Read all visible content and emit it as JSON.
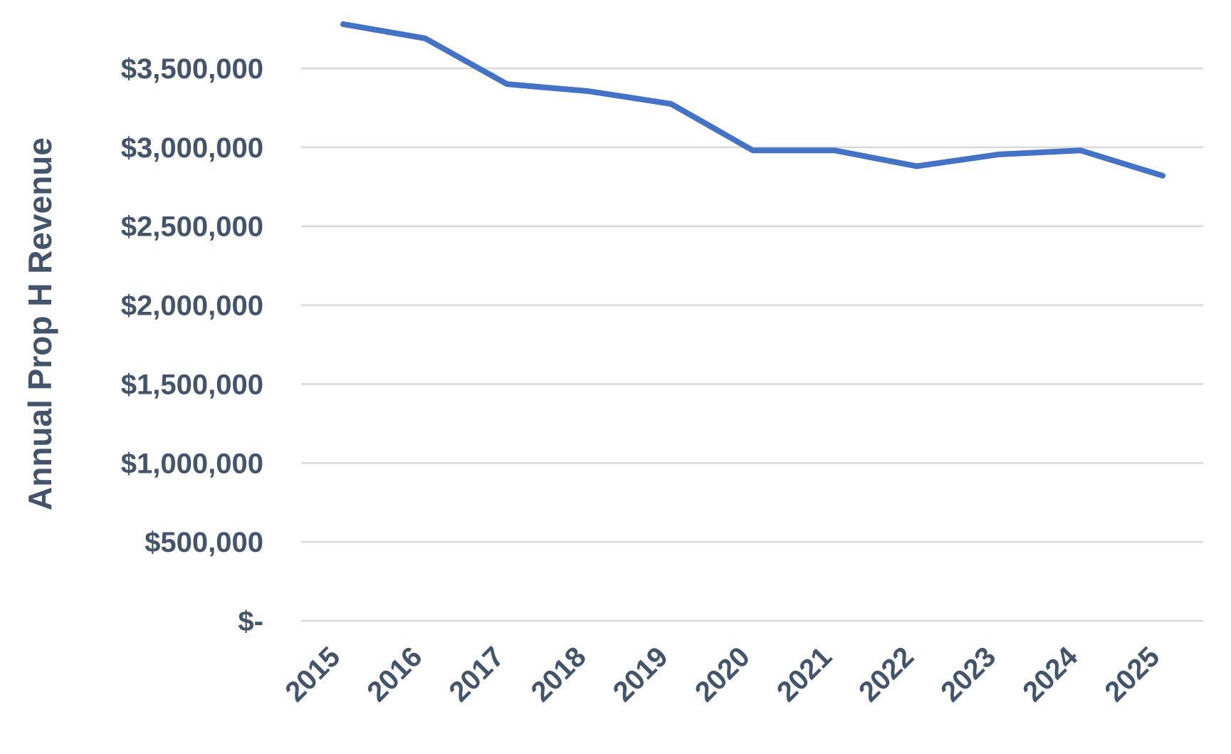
{
  "chart_data": {
    "type": "line",
    "title": "",
    "xlabel": "",
    "ylabel": "Annual Prop H Revenue",
    "categories": [
      "2015",
      "2016",
      "2017",
      "2018",
      "2019",
      "2020",
      "2021",
      "2022",
      "2023",
      "2024",
      "2025"
    ],
    "series": [
      {
        "values": [
          3780000,
          3690000,
          3400000,
          3355000,
          3275000,
          2980000,
          2980000,
          2880000,
          2955000,
          2980000,
          2820000
        ]
      }
    ],
    "ylim": [
      0,
      3500000
    ],
    "yticks": [
      0,
      500000,
      1000000,
      1500000,
      2000000,
      2500000,
      3000000,
      3500000
    ],
    "ytick_labels": [
      "$-",
      "$500,000",
      "$1,000,000",
      "$1,500,000",
      "$2,000,000",
      "$2,500,000",
      "$3,000,000",
      "$3,500,000"
    ],
    "grid": true,
    "legend": "none",
    "colors": {
      "line": "#4472c4",
      "text": "#44546a",
      "grid": "#d9d9d9"
    }
  }
}
